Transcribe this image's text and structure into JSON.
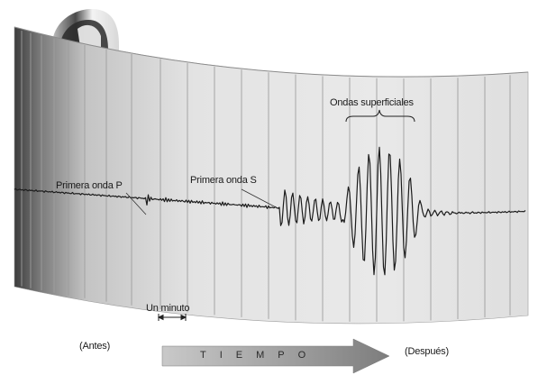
{
  "labels": {
    "first_p_wave": "Primera onda P",
    "first_s_wave": "Primera onda S",
    "surface_waves": "Ondas superficiales",
    "one_minute": "Un minuto",
    "before": "(Antes)",
    "time": "TIEMPO",
    "after": "(Después)"
  },
  "colors": {
    "drum_paper": "#e6e6e6",
    "drum_shadow": "#5a5a5a",
    "trace": "#1c1c1c",
    "arrow_fill": "#8a8a8a"
  }
}
